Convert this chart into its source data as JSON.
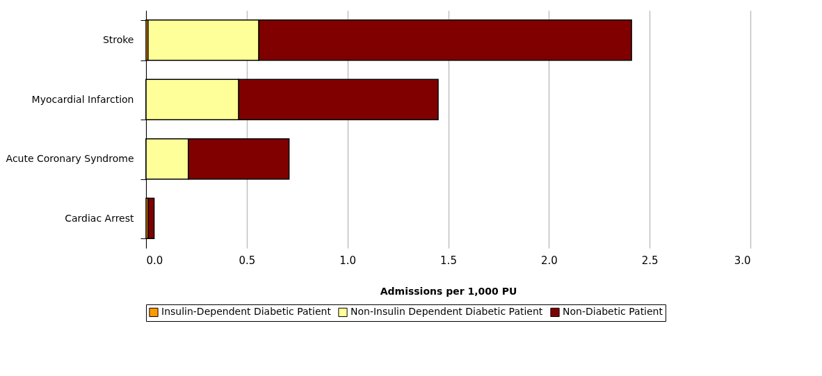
{
  "chart_data": {
    "type": "bar",
    "orientation": "horizontal",
    "stacked": true,
    "xlabel": "Admissions per 1,000 PU",
    "categories": [
      "Stroke",
      "Myocardial Infarction",
      "Acute Coronary Syndrome",
      "Cardiac Arrest"
    ],
    "series": [
      {
        "name": "Insulin-Dependent Diabetic Patient",
        "color": "#ff9900",
        "values": [
          0.01,
          0,
          0,
          0.01
        ]
      },
      {
        "name": "Non-Insulin Dependent Diabetic Patient",
        "color": "#ffff99",
        "values": [
          0.55,
          0.46,
          0.21,
          0
        ]
      },
      {
        "name": "Non-Diabetic Patient",
        "color": "#800000",
        "values": [
          1.85,
          0.99,
          0.5,
          0.03
        ]
      }
    ],
    "xlim": [
      0,
      3
    ],
    "xticks": [
      {
        "value": 0,
        "label": "0.0"
      },
      {
        "value": 0.5,
        "label": "0.5"
      },
      {
        "value": 1,
        "label": "1.0"
      },
      {
        "value": 1.5,
        "label": "1.5"
      },
      {
        "value": 2,
        "label": "2.0"
      },
      {
        "value": 2.5,
        "label": "2.5"
      },
      {
        "value": 3,
        "label": "3.0"
      }
    ],
    "grid": "x",
    "legend": "bottom"
  }
}
